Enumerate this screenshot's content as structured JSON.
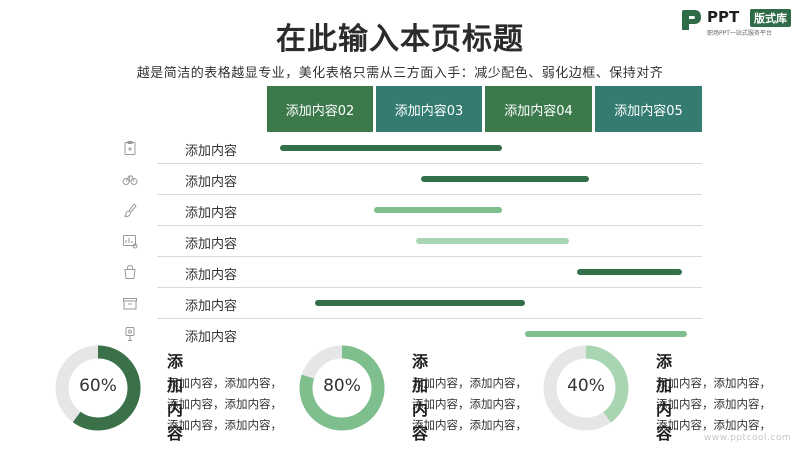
{
  "header": {
    "title": "在此输入本页标题",
    "subtitle": "越是简洁的表格越显专业，美化表格只需从三方面入手：减少配色、弱化边框、保持对齐"
  },
  "logo": {
    "ppt": "PPT",
    "badge": "版式库",
    "sub": "职场PPT一站式服务平台"
  },
  "columns": [
    {
      "label": "添加内容02",
      "color": "#3c7a4c"
    },
    {
      "label": "添加内容03",
      "color": "#347c72"
    },
    {
      "label": "添加内容04",
      "color": "#3c7a4c"
    },
    {
      "label": "添加内容05",
      "color": "#347c72"
    }
  ],
  "rows": [
    {
      "label": "添加内容",
      "icon": "medical-note-icon",
      "bar_color": "#33704a"
    },
    {
      "label": "添加内容",
      "icon": "bicycle-icon",
      "bar_color": "#33704a"
    },
    {
      "label": "添加内容",
      "icon": "brush-icon",
      "bar_color": "#7fbf8e"
    },
    {
      "label": "添加内容",
      "icon": "chart-hand-icon",
      "bar_color": "#a9d6b2"
    },
    {
      "label": "添加内容",
      "icon": "shopping-bag-icon",
      "bar_color": "#33704a"
    },
    {
      "label": "添加内容",
      "icon": "box-icon",
      "bar_color": "#33704a"
    },
    {
      "label": "添加内容",
      "icon": "location-pin-icon",
      "bar_color": "#7fbf8e"
    }
  ],
  "stats": [
    {
      "percent_label": "60%",
      "percent": 60,
      "color": "#3a7149",
      "title": "添加内容",
      "lines": [
        "添加内容，添加内容，",
        "添加内容，添加内容，",
        "添加内容，添加内容，"
      ]
    },
    {
      "percent_label": "80%",
      "percent": 80,
      "color": "#7fbf8e",
      "title": "添加内容",
      "lines": [
        "添加内容，添加内容，",
        "添加内容，添加内容，",
        "添加内容，添加内容，"
      ]
    },
    {
      "percent_label": "40%",
      "percent": 40,
      "color": "#a9d6b2",
      "title": "添加内容",
      "lines": [
        "添加内容，添加内容，",
        "添加内容，添加内容，",
        "添加内容，添加内容，"
      ]
    }
  ],
  "watermark": "www.pptcool.com"
}
